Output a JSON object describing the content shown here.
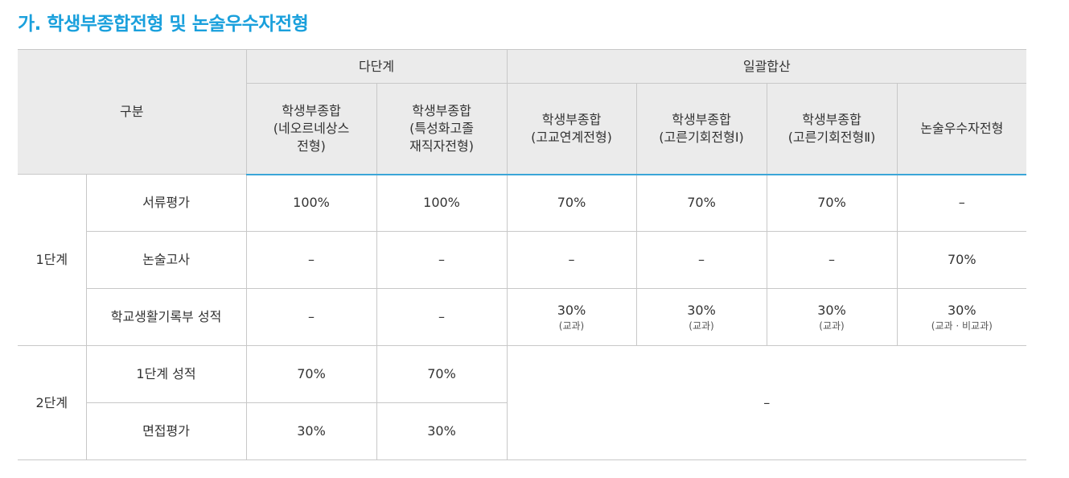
{
  "title": "가. 학생부종합전형 및 논술우수자전형",
  "header": {
    "category": "구분",
    "group_multi": "다단계",
    "group_single": "일괄합산",
    "columns": [
      [
        "학생부종합",
        "(네오르네상스",
        "전형)"
      ],
      [
        "학생부종합",
        "(특성화고졸",
        "재직자전형)"
      ],
      [
        "학생부종합",
        "(고교연계전형)"
      ],
      [
        "학생부종합",
        "(고른기회전형Ⅰ)"
      ],
      [
        "학생부종합",
        "(고른기회전형Ⅱ)"
      ],
      [
        "논술우수자전형"
      ]
    ]
  },
  "stage1": {
    "label": "1단계",
    "rows": [
      {
        "label": "서류평가",
        "values": [
          "100%",
          "100%",
          "70%",
          "70%",
          "70%",
          "–"
        ]
      },
      {
        "label": "논술고사",
        "values": [
          "–",
          "–",
          "–",
          "–",
          "–",
          "70%"
        ]
      },
      {
        "label": "학교생활기록부 성적",
        "values": [
          "–",
          "–",
          "30%",
          "30%",
          "30%",
          "30%"
        ],
        "notes": [
          "",
          "",
          "(교과)",
          "(교과)",
          "(교과)",
          "(교과 · 비교과)"
        ]
      }
    ]
  },
  "stage2": {
    "label": "2단계",
    "rows": [
      {
        "label": "1단계 성적",
        "values": [
          "70%",
          "70%"
        ]
      },
      {
        "label": "면접평가",
        "values": [
          "30%",
          "30%"
        ]
      }
    ],
    "merged": "–"
  }
}
